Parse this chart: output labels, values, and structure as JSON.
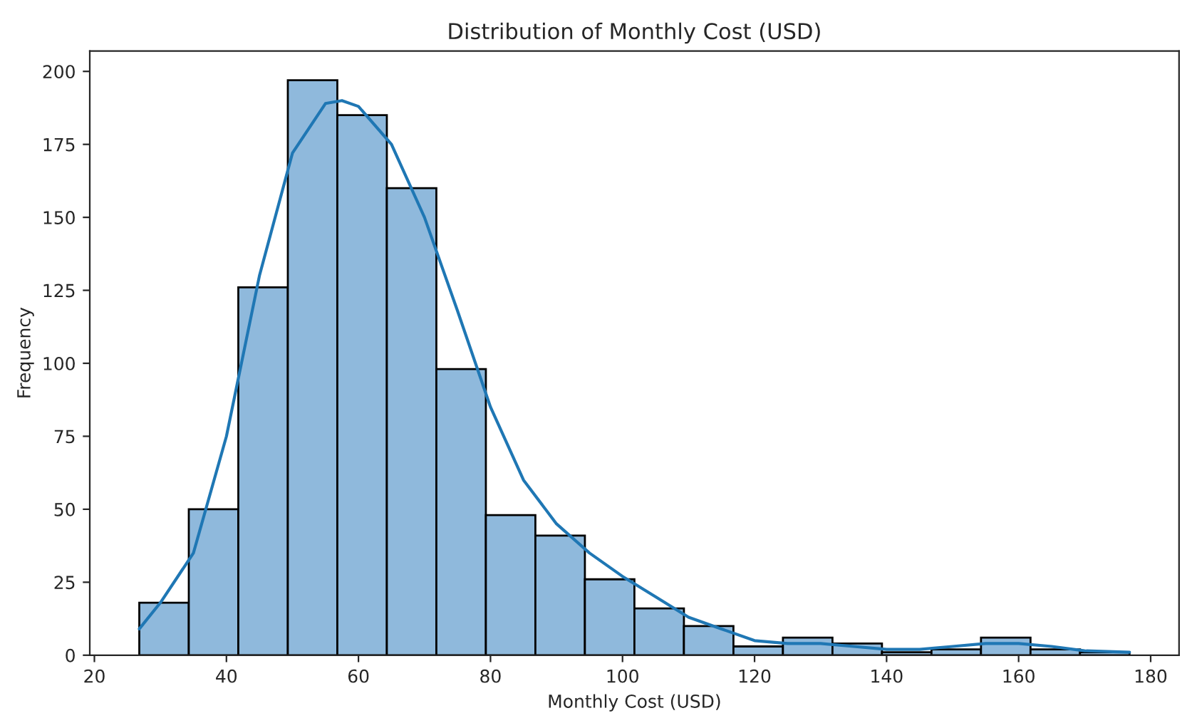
{
  "chart_data": {
    "type": "histogram",
    "title": "Distribution of Monthly Cost (USD)",
    "xlabel": "Monthly Cost (USD)",
    "ylabel": "Frequency",
    "bins": [
      26.8,
      34.3,
      41.8,
      49.3,
      56.8,
      64.3,
      71.8,
      79.3,
      86.8,
      94.3,
      101.8,
      109.3,
      116.8,
      124.3,
      131.8,
      139.3,
      146.8,
      154.3,
      161.8,
      169.3,
      176.8
    ],
    "series": [
      {
        "color": "#8fb9dc",
        "values": [
          18,
          50,
          126,
          197,
          185,
          160,
          98,
          48,
          41,
          26,
          16,
          10,
          3,
          6,
          4,
          1,
          2,
          6,
          2,
          1
        ]
      },
      {
        "type": "line",
        "color": "#1f77b4",
        "x": [
          26.8,
          30,
          35,
          40,
          45,
          50,
          55,
          57.5,
          60,
          65,
          70,
          75,
          80,
          85,
          90,
          95,
          100,
          105,
          110,
          115,
          120,
          125,
          130,
          135,
          140,
          145,
          150,
          155,
          160,
          165,
          170,
          176.8
        ],
        "values": [
          9,
          18,
          35,
          75,
          130,
          172,
          189,
          190,
          188,
          175,
          150,
          118,
          85,
          60,
          45,
          35,
          27,
          20,
          13,
          9,
          5,
          4,
          4,
          3,
          2,
          2,
          3,
          4,
          4,
          3,
          1.5,
          1
        ]
      }
    ],
    "xlim": [
      19.3,
      184.3
    ],
    "xticks": [
      20,
      40,
      60,
      80,
      100,
      120,
      140,
      160,
      180
    ],
    "ylim": [
      0,
      207
    ],
    "yticks": [
      0,
      25,
      50,
      75,
      100,
      125,
      150,
      175,
      200
    ],
    "grid": false
  }
}
